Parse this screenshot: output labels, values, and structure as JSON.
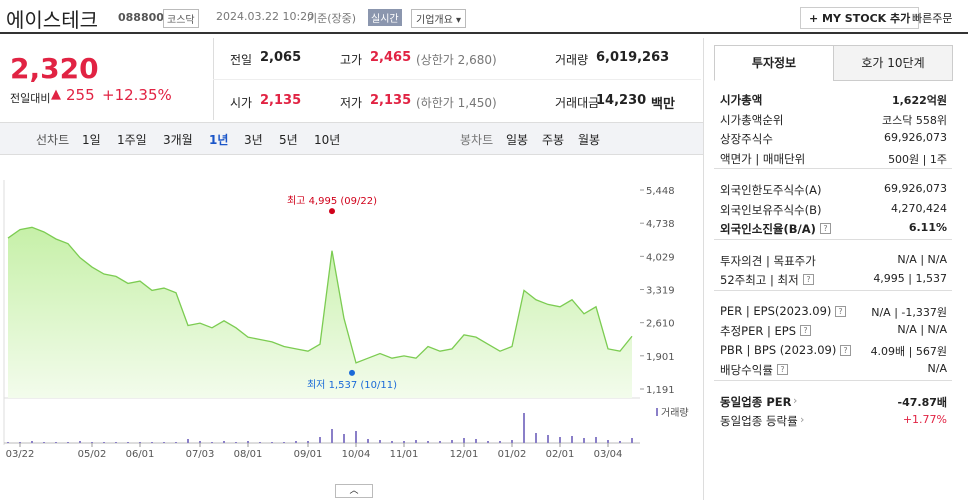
{
  "header": {
    "title": "에이스테크",
    "code": "088800",
    "market": "코스닥",
    "datetime": "2024.03.22 10:20",
    "basis": "기준(장중)",
    "realtime": "실시간",
    "overview": "기업개요 ▾",
    "mystock": "+ MY STOCK 추가",
    "quick_order": "빠른주문"
  },
  "quote": {
    "price": "2,320",
    "change_label": "전일대비",
    "change": "255",
    "change_rate": "+12.35%",
    "stats": [
      {
        "label": "전일",
        "value": "2,065",
        "color": "#222222"
      },
      {
        "label": "고가",
        "value": "2,465",
        "note": "(상한가 2,680)",
        "color": "#e12343"
      },
      {
        "label": "거래량",
        "value": "6,019,263",
        "color": "#222222"
      },
      {
        "label": "시가",
        "value": "2,135",
        "color": "#e12343"
      },
      {
        "label": "저가",
        "value": "2,135",
        "note": "(하한가 1,450)",
        "color": "#e12343"
      },
      {
        "label": "거래대금",
        "value": "14,230",
        "unit": "백만",
        "color": "#222222"
      }
    ]
  },
  "periods": {
    "line_label": "선차트",
    "line": [
      "1일",
      "1주일",
      "3개월",
      "1년",
      "3년",
      "5년",
      "10년"
    ],
    "active": 3,
    "candle_label": "봉차트",
    "candle": [
      "일봉",
      "주봉",
      "월봉"
    ]
  },
  "info": {
    "tabs": [
      "투자정보",
      "호가 10단계"
    ],
    "active": 0,
    "groups": [
      [
        {
          "label": "시가총액",
          "value": "1,622억원",
          "bold": true
        },
        {
          "label": "시가총액순위",
          "value": "코스닥 558위"
        },
        {
          "label": "상장주식수",
          "value": "69,926,073"
        },
        {
          "label": "액면가 | 매매단위",
          "value": "500원 | 1주"
        }
      ],
      [
        {
          "label": "외국인한도주식수(A)",
          "value": "69,926,073"
        },
        {
          "label": "외국인보유주식수(B)",
          "value": "4,270,424"
        },
        {
          "label": "외국인소진율(B/A)",
          "value": "6.11%",
          "bold": true,
          "help": true
        }
      ],
      [
        {
          "label": "투자의견 | 목표주가",
          "value": "N/A | N/A"
        },
        {
          "label": "52주최고 | 최저",
          "value": "4,995 | 1,537",
          "help": true
        }
      ],
      [
        {
          "label": "PER | EPS(2023.09)",
          "value": "N/A | -1,337원",
          "help": true
        },
        {
          "label": "추정PER | EPS",
          "value": "N/A | N/A",
          "help": true
        },
        {
          "label": "PBR | BPS (2023.09)",
          "value": "4.09배 | 567원",
          "help": true
        },
        {
          "label": "배당수익률",
          "value": "N/A",
          "help": true
        }
      ],
      [
        {
          "label": "동일업종 PER",
          "value": "-47.87배",
          "bold": true,
          "arrow": true
        },
        {
          "label": "동일업종 등락률",
          "value": "+1.77%",
          "arrow": true,
          "color": "#e12343"
        }
      ]
    ]
  },
  "chart_data": {
    "type": "line",
    "categories": [
      null,
      "03/22",
      null,
      null,
      null,
      null,
      null,
      "05/02",
      null,
      null,
      null,
      "06/01",
      null,
      null,
      null,
      null,
      "07/03",
      null,
      null,
      null,
      "08/01",
      null,
      null,
      null,
      null,
      "09/01",
      null,
      null,
      null,
      "10/04",
      null,
      null,
      null,
      "11/01",
      null,
      null,
      null,
      null,
      "12/01",
      null,
      null,
      null,
      "01/02",
      null,
      null,
      null,
      "02/01",
      null,
      null,
      null,
      "03/04",
      null,
      null
    ],
    "series": [
      {
        "color": "#7ccc52",
        "values": [
          4420,
          4600,
          4650,
          4550,
          4400,
          4300,
          4000,
          3800,
          3650,
          3600,
          3450,
          3500,
          3300,
          3350,
          3250,
          2550,
          2600,
          2500,
          2650,
          2500,
          2300,
          2250,
          2200,
          2100,
          2050,
          2000,
          2150,
          4150,
          2700,
          1750,
          1850,
          1950,
          1850,
          1900,
          1850,
          2100,
          2000,
          2050,
          2350,
          2300,
          2150,
          2000,
          2100,
          3300,
          3100,
          3000,
          2950,
          3100,
          2800,
          2950,
          2050,
          2000,
          2320
        ]
      },
      {
        "name": "거래량",
        "type": "bar",
        "axis": "y2",
        "color": "#8a7fc8",
        "values": [
          1,
          1,
          2,
          1,
          1,
          1,
          2,
          1,
          1,
          1,
          1,
          1,
          1,
          1,
          1,
          4,
          2,
          1,
          2,
          1,
          2,
          1,
          1,
          1,
          2,
          2,
          6,
          14,
          9,
          12,
          4,
          3,
          2,
          2,
          3,
          2,
          2,
          3,
          5,
          4,
          2,
          2,
          3,
          30,
          10,
          8,
          6,
          7,
          5,
          6,
          3,
          2,
          5
        ]
      }
    ],
    "ylim": [
      1191,
      5448
    ],
    "yticks": [
      {
        "value": 1191,
        "label": "1,191"
      },
      {
        "value": 1901,
        "label": "1,901"
      },
      {
        "value": 2610,
        "label": "2,610"
      },
      {
        "value": 3319,
        "label": "3,319"
      },
      {
        "value": 4029,
        "label": "4,029"
      },
      {
        "value": 4738,
        "label": "4,738"
      },
      {
        "value": 5448,
        "label": "5,448"
      }
    ],
    "y2lim": [
      0,
      40
    ],
    "annotations": [
      {
        "label": "최고 4,995 (09/22)",
        "value": 4995,
        "color": "#d0021b"
      },
      {
        "label": "최저 1,537 (10/11)",
        "value": 1537,
        "color": "#1a6ad8"
      }
    ]
  }
}
